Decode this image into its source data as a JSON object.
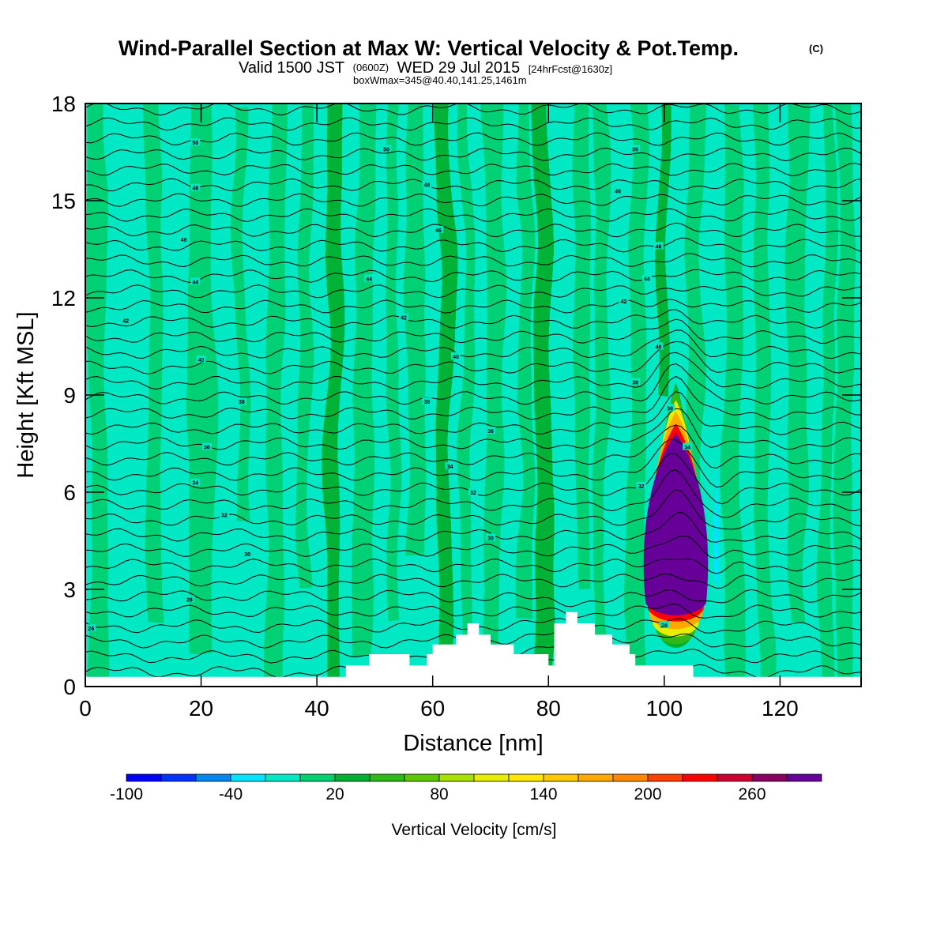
{
  "header": {
    "title": "Wind-Parallel Section at Max W: Vertical Velocity & Pot.Temp.",
    "copyright": "(C)",
    "subtitle": {
      "valid": "Valid 1500 JST",
      "utc": "(0600Z)",
      "date": "WED 29 Jul 2015",
      "forecast": "[24hrFcst@1630z]"
    },
    "boxinfo": "boxWmax=345@40.40,141.25,1461m"
  },
  "chart_data": {
    "type": "heatmap",
    "xlabel": "Distance [nm]",
    "ylabel": "Height [Kft MSL]",
    "xlim": [
      0,
      134
    ],
    "ylim": [
      0,
      18
    ],
    "xticks": [
      "0",
      "20",
      "40",
      "60",
      "80",
      "100",
      "120"
    ],
    "yticks": [
      "0",
      "3",
      "6",
      "9",
      "12",
      "15",
      "18"
    ],
    "colorbar": {
      "label": "Vertical Velocity [cm/s]",
      "tick_labels": [
        "-100",
        "-40",
        "20",
        "80",
        "140",
        "200",
        "260"
      ],
      "tick_values": [
        -100,
        -40,
        20,
        80,
        140,
        200,
        260
      ],
      "range": [
        -100,
        300
      ],
      "levels": 20,
      "colors": [
        "#0000ff",
        "#0033ff",
        "#0088f0",
        "#00e4ff",
        "#00e8c4",
        "#00d070",
        "#00b030",
        "#30b818",
        "#5cc800",
        "#a8e000",
        "#e8ee00",
        "#ffe800",
        "#ffc800",
        "#ffa800",
        "#ff8800",
        "#ff4000",
        "#ff0000",
        "#cc0030",
        "#880060",
        "#660099"
      ]
    },
    "updrafts": [
      {
        "x": 102,
        "z_bottom": 1.0,
        "z_top": 9.5,
        "w_max": 345,
        "sign": "updraft"
      },
      {
        "x": 109,
        "z_bottom": 2.5,
        "z_top": 7.5,
        "w_max": -60,
        "sign": "downdraft"
      },
      {
        "x": 92,
        "z_bottom": 2.0,
        "z_top": 4.5,
        "w_max": -30,
        "sign": "downdraft"
      }
    ],
    "terrain": [
      [
        0,
        0.3
      ],
      [
        45,
        0.3
      ],
      [
        45,
        0.65
      ],
      [
        49,
        0.65
      ],
      [
        49,
        1.0
      ],
      [
        56,
        1.0
      ],
      [
        56,
        0.65
      ],
      [
        59,
        0.65
      ],
      [
        59,
        1.0
      ],
      [
        60,
        1.0
      ],
      [
        60,
        1.3
      ],
      [
        64,
        1.3
      ],
      [
        64,
        1.6
      ],
      [
        66,
        1.6
      ],
      [
        66,
        1.95
      ],
      [
        68,
        1.95
      ],
      [
        68,
        1.6
      ],
      [
        70,
        1.6
      ],
      [
        70,
        1.3
      ],
      [
        74,
        1.3
      ],
      [
        74,
        1.0
      ],
      [
        80,
        1.0
      ],
      [
        80,
        0.65
      ],
      [
        81,
        0.65
      ],
      [
        81,
        1.95
      ],
      [
        83,
        1.95
      ],
      [
        83,
        2.3
      ],
      [
        85,
        2.3
      ],
      [
        85,
        1.95
      ],
      [
        88,
        1.95
      ],
      [
        88,
        1.6
      ],
      [
        91,
        1.6
      ],
      [
        91,
        1.3
      ],
      [
        94,
        1.3
      ],
      [
        94,
        1.0
      ],
      [
        95,
        1.0
      ],
      [
        95,
        0.65
      ],
      [
        105,
        0.65
      ],
      [
        105,
        0.3
      ],
      [
        134,
        0.3
      ]
    ],
    "theta_labels": [
      {
        "x": 19,
        "z": 16.8,
        "t": "50"
      },
      {
        "x": 52,
        "z": 16.6,
        "t": "50"
      },
      {
        "x": 95,
        "z": 16.6,
        "t": "50"
      },
      {
        "x": 19,
        "z": 15.4,
        "t": "48"
      },
      {
        "x": 59,
        "z": 15.5,
        "t": "48"
      },
      {
        "x": 92,
        "z": 15.3,
        "t": "46"
      },
      {
        "x": 17,
        "z": 13.8,
        "t": "46"
      },
      {
        "x": 61,
        "z": 14.1,
        "t": "46"
      },
      {
        "x": 99,
        "z": 13.6,
        "t": "46"
      },
      {
        "x": 19,
        "z": 12.5,
        "t": "44"
      },
      {
        "x": 49,
        "z": 12.6,
        "t": "44"
      },
      {
        "x": 97,
        "z": 12.6,
        "t": "44"
      },
      {
        "x": 7,
        "z": 11.3,
        "t": "42"
      },
      {
        "x": 55,
        "z": 11.4,
        "t": "42"
      },
      {
        "x": 93,
        "z": 11.9,
        "t": "42"
      },
      {
        "x": 20,
        "z": 10.1,
        "t": "40"
      },
      {
        "x": 64,
        "z": 10.2,
        "t": "40"
      },
      {
        "x": 99,
        "z": 10.5,
        "t": "40"
      },
      {
        "x": 27,
        "z": 8.8,
        "t": "38"
      },
      {
        "x": 59,
        "z": 8.8,
        "t": "38"
      },
      {
        "x": 95,
        "z": 9.4,
        "t": "38"
      },
      {
        "x": 21,
        "z": 7.4,
        "t": "36"
      },
      {
        "x": 70,
        "z": 7.9,
        "t": "36"
      },
      {
        "x": 101,
        "z": 8.6,
        "t": "36"
      },
      {
        "x": 19,
        "z": 6.3,
        "t": "34"
      },
      {
        "x": 63,
        "z": 6.8,
        "t": "34"
      },
      {
        "x": 104,
        "z": 7.4,
        "t": "34"
      },
      {
        "x": 24,
        "z": 5.3,
        "t": "32"
      },
      {
        "x": 67,
        "z": 6.0,
        "t": "32"
      },
      {
        "x": 96,
        "z": 6.2,
        "t": "32"
      },
      {
        "x": 28,
        "z": 4.1,
        "t": "30"
      },
      {
        "x": 70,
        "z": 4.6,
        "t": "30"
      },
      {
        "x": 18,
        "z": 2.7,
        "t": "28"
      },
      {
        "x": 100,
        "z": 1.9,
        "t": "28"
      },
      {
        "x": 1,
        "z": 1.8,
        "t": "26"
      }
    ]
  }
}
